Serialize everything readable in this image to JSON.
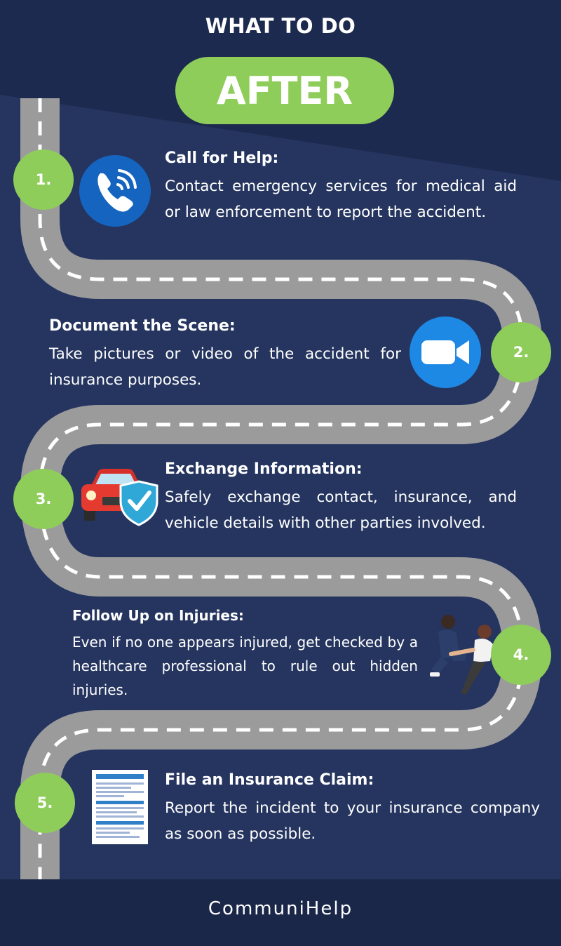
{
  "header": {
    "title": "WHAT TO DO",
    "highlight": "AFTER"
  },
  "colors": {
    "background": "#25355f",
    "header_band": "#1d2a4f",
    "accent_green": "#8fcd5b",
    "road": "#9b9b9b",
    "footer": "#1a2749"
  },
  "steps": [
    {
      "number": "1.",
      "title": "Call for Help:",
      "text": "Contact emergency services for medical aid or law enforcement to report the accident.",
      "icon": "phone-icon"
    },
    {
      "number": "2.",
      "title": "Document the Scene:",
      "text": "Take pictures or video of the accident for insurance purposes.",
      "icon": "video-camera-icon"
    },
    {
      "number": "3.",
      "title": "Exchange Information:",
      "text": "Safely exchange contact, insurance, and vehicle details with other parties involved.",
      "icon": "car-shield-icon"
    },
    {
      "number": "4.",
      "title": "Follow Up on Injuries:",
      "text": "Even if no one appears injured, get checked by a healthcare professional to rule out hidden injuries.",
      "icon": "first-aid-people-icon"
    },
    {
      "number": "5.",
      "title": "File an Insurance Claim:",
      "text": "Report the incident to your insurance company as soon as possible.",
      "icon": "claim-form-icon"
    }
  ],
  "footer": {
    "brand": "CommuniHelp"
  }
}
